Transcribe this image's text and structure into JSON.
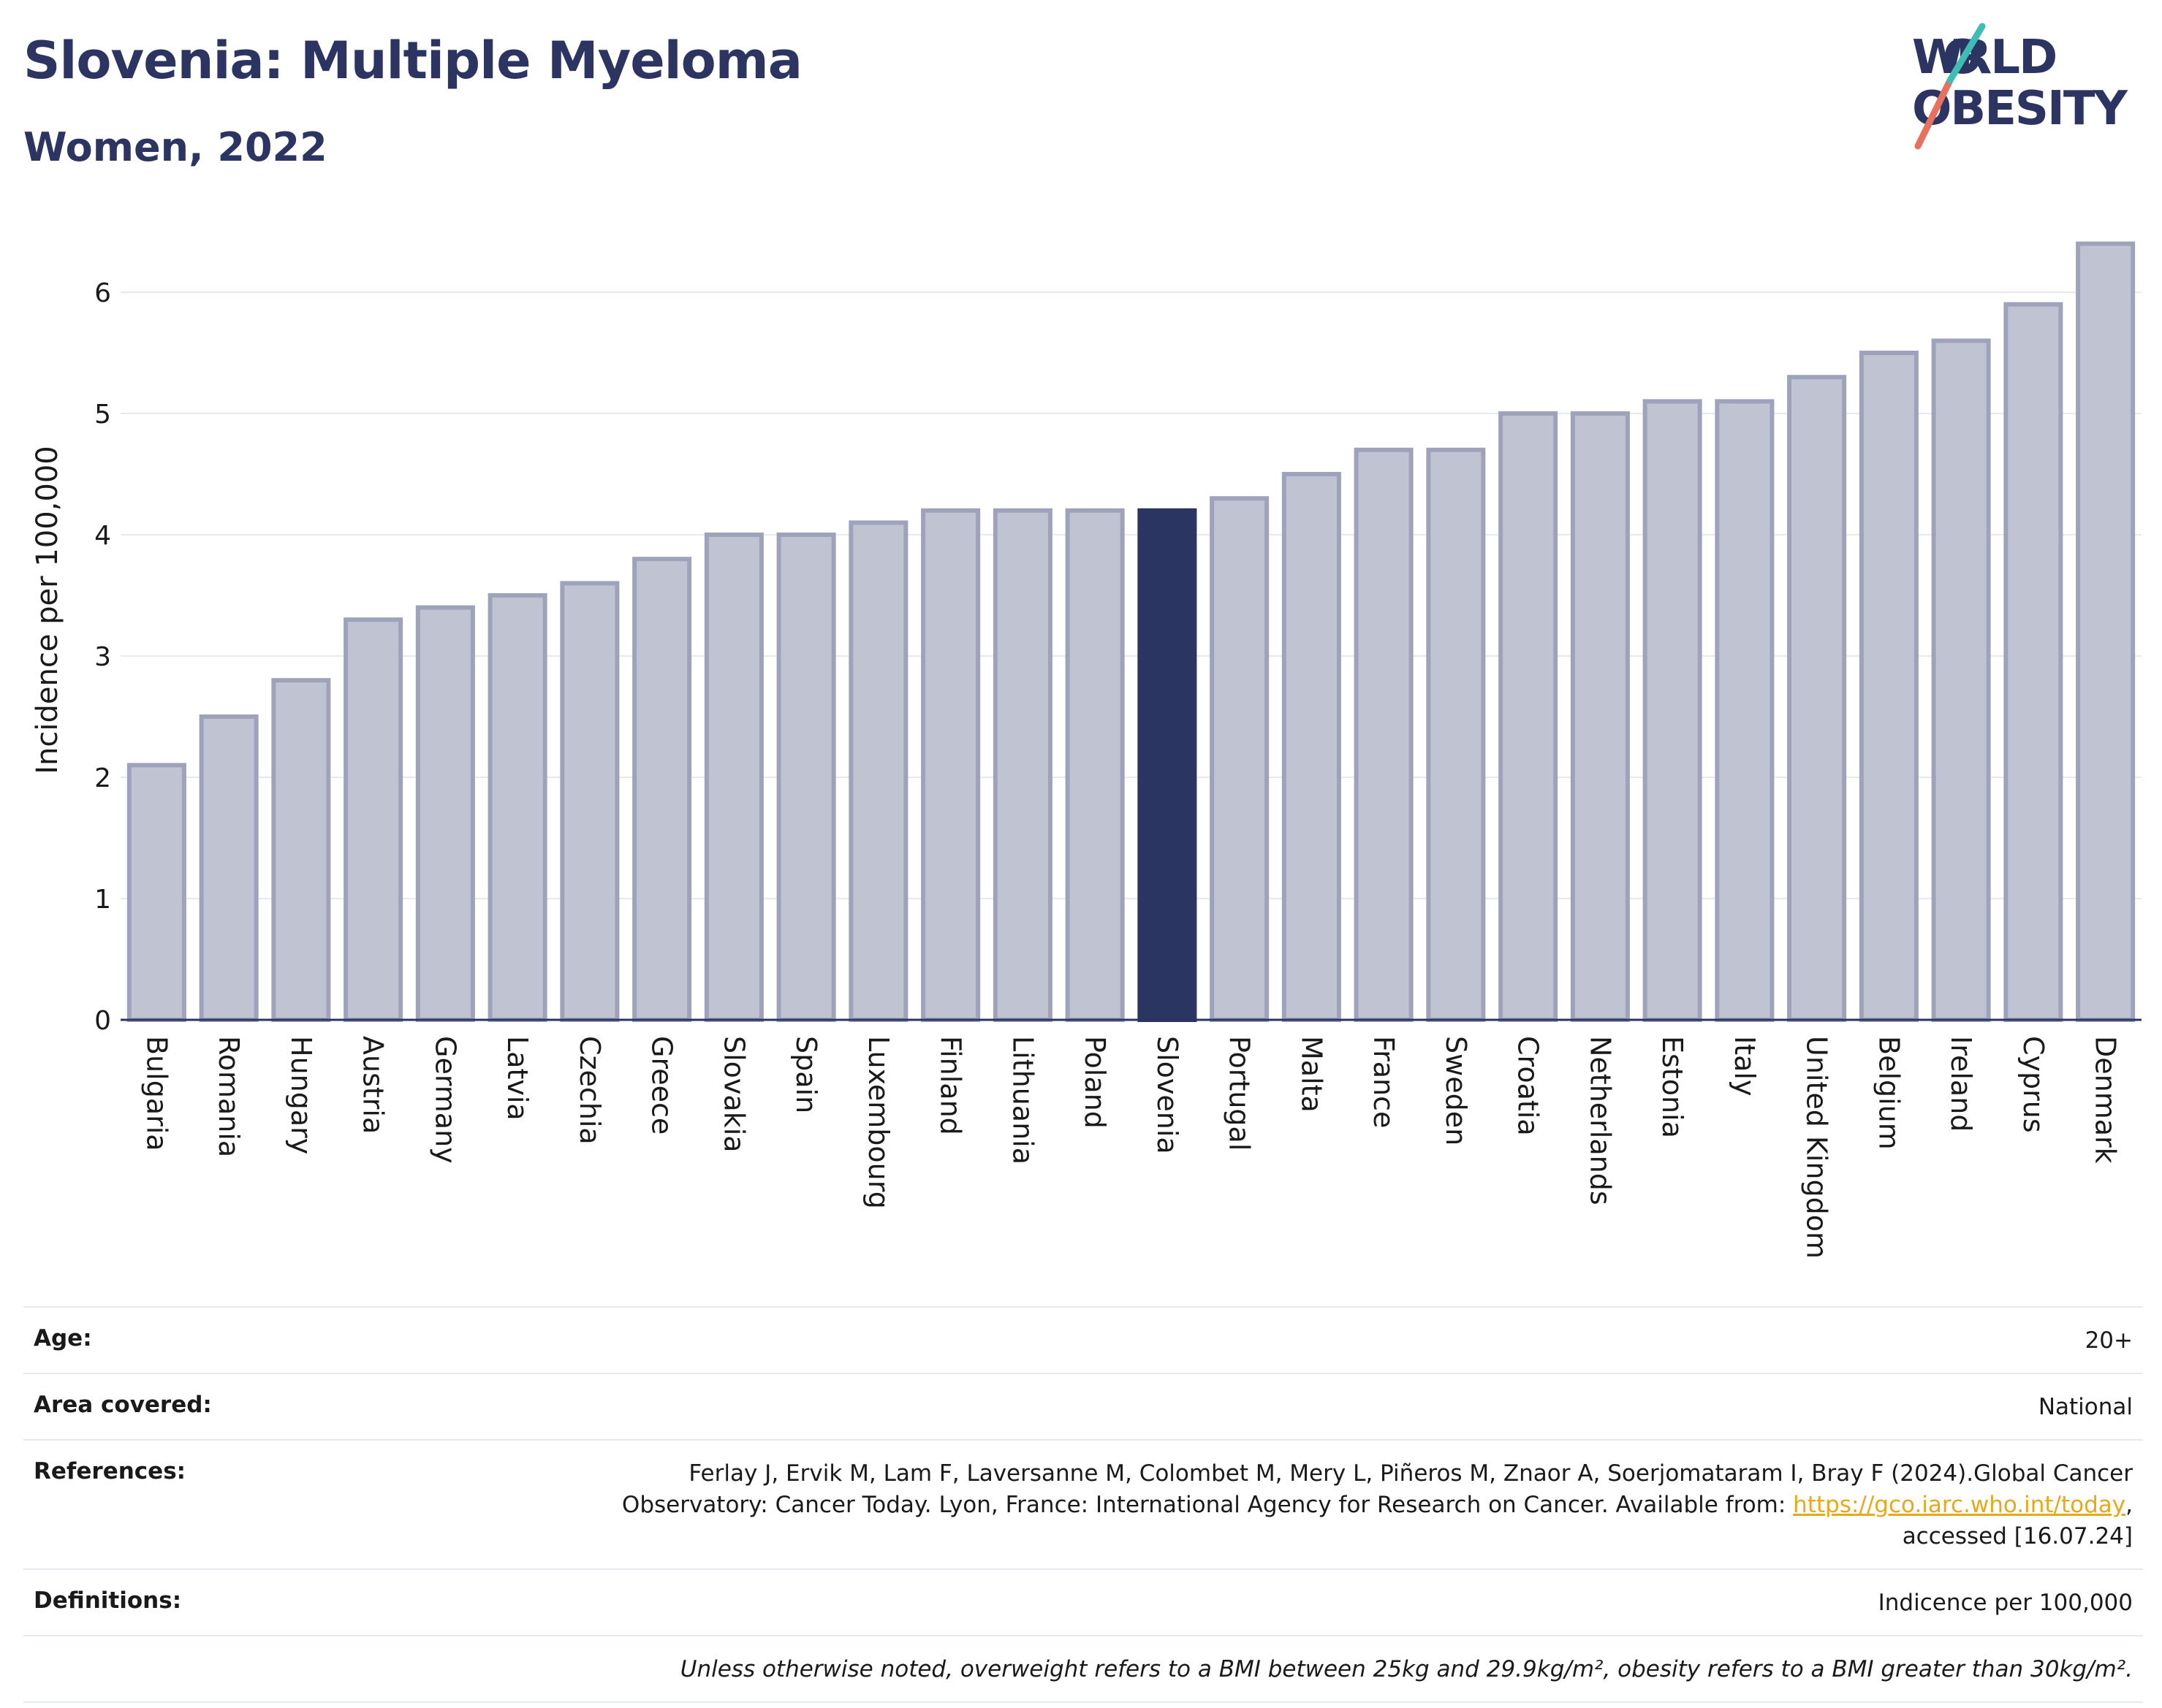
{
  "header": {
    "title": "Slovenia: Multiple Myeloma",
    "subtitle": "Women, 2022"
  },
  "logo": {
    "line1": "WORLD",
    "line2": "OBESITY"
  },
  "colors": {
    "highlight": "#2b3561",
    "bar_fill": "#bfc3d2",
    "bar_stroke": "#9ea3bb",
    "grid": "#e8eaf0",
    "logo_teal": "#3dbdb4",
    "logo_coral": "#e8705e"
  },
  "chart_data": {
    "type": "bar",
    "title": "Slovenia: Multiple Myeloma",
    "subtitle": "Women, 2022",
    "xlabel": "",
    "ylabel": "Incidence per 100,000",
    "ylim": [
      0,
      6.45
    ],
    "yticks": [
      0,
      1,
      2,
      3,
      4,
      5,
      6
    ],
    "grid": true,
    "highlight": "Slovenia",
    "categories": [
      "Bulgaria",
      "Romania",
      "Hungary",
      "Austria",
      "Germany",
      "Latvia",
      "Czechia",
      "Greece",
      "Slovakia",
      "Spain",
      "Luxembourg",
      "Finland",
      "Lithuania",
      "Poland",
      "Slovenia",
      "Portugal",
      "Malta",
      "France",
      "Sweden",
      "Croatia",
      "Netherlands",
      "Estonia",
      "Italy",
      "United Kingdom",
      "Belgium",
      "Ireland",
      "Cyprus",
      "Denmark"
    ],
    "values": [
      2.1,
      2.5,
      2.8,
      3.3,
      3.4,
      3.5,
      3.6,
      3.8,
      4.0,
      4.0,
      4.1,
      4.2,
      4.2,
      4.2,
      4.2,
      4.3,
      4.5,
      4.7,
      4.7,
      5.0,
      5.0,
      5.1,
      5.1,
      5.3,
      5.5,
      5.6,
      5.9,
      6.4
    ]
  },
  "info": {
    "age_label": "Age:",
    "age_value": "20+",
    "area_label": "Area covered:",
    "area_value": "National",
    "refs_label": "References:",
    "refs_line1": "Ferlay J, Ervik M, Lam F, Laversanne M, Colombet M, Mery L, Piñeros M, Znaor A, Soerjomataram I, Bray F (2024).Global Cancer",
    "refs_line2_pre": "Observatory: Cancer Today. Lyon, France: International Agency for Research on Cancer. Available from: ",
    "refs_link": "https://gco.iarc.who.int/today",
    "refs_line2_post": ",",
    "refs_line3": "accessed [16.07.24]",
    "defs_label": "Definitions:",
    "defs_value": "Indicence per 100,000",
    "note": "Unless otherwise noted, overweight refers to a BMI between 25kg and 29.9kg/m², obesity refers to a BMI greater than 30kg/m²."
  }
}
